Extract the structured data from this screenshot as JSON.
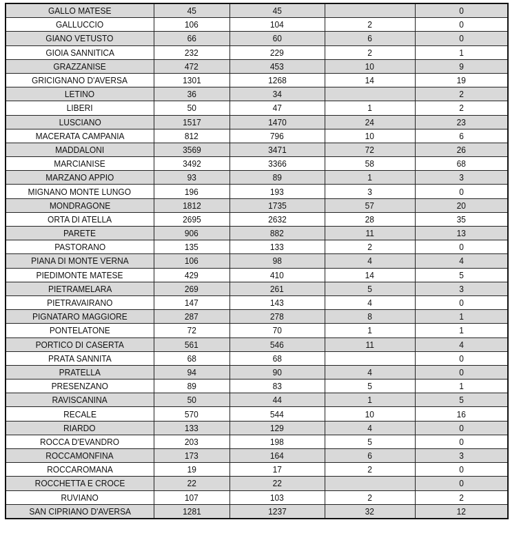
{
  "table": {
    "rows": [
      [
        "GALLO MATESE",
        "45",
        "45",
        "",
        "0"
      ],
      [
        "GALLUCCIO",
        "106",
        "104",
        "2",
        "0"
      ],
      [
        "GIANO VETUSTO",
        "66",
        "60",
        "6",
        "0"
      ],
      [
        "GIOIA SANNITICA",
        "232",
        "229",
        "2",
        "1"
      ],
      [
        "GRAZZANISE",
        "472",
        "453",
        "10",
        "9"
      ],
      [
        "GRICIGNANO D'AVERSA",
        "1301",
        "1268",
        "14",
        "19"
      ],
      [
        "LETINO",
        "36",
        "34",
        "",
        "2"
      ],
      [
        "LIBERI",
        "50",
        "47",
        "1",
        "2"
      ],
      [
        "LUSCIANO",
        "1517",
        "1470",
        "24",
        "23"
      ],
      [
        "MACERATA CAMPANIA",
        "812",
        "796",
        "10",
        "6"
      ],
      [
        "MADDALONI",
        "3569",
        "3471",
        "72",
        "26"
      ],
      [
        "MARCIANISE",
        "3492",
        "3366",
        "58",
        "68"
      ],
      [
        "MARZANO APPIO",
        "93",
        "89",
        "1",
        "3"
      ],
      [
        "MIGNANO MONTE LUNGO",
        "196",
        "193",
        "3",
        "0"
      ],
      [
        "MONDRAGONE",
        "1812",
        "1735",
        "57",
        "20"
      ],
      [
        "ORTA DI ATELLA",
        "2695",
        "2632",
        "28",
        "35"
      ],
      [
        "PARETE",
        "906",
        "882",
        "11",
        "13"
      ],
      [
        "PASTORANO",
        "135",
        "133",
        "2",
        "0"
      ],
      [
        "PIANA DI MONTE VERNA",
        "106",
        "98",
        "4",
        "4"
      ],
      [
        "PIEDIMONTE MATESE",
        "429",
        "410",
        "14",
        "5"
      ],
      [
        "PIETRAMELARA",
        "269",
        "261",
        "5",
        "3"
      ],
      [
        "PIETRAVAIRANO",
        "147",
        "143",
        "4",
        "0"
      ],
      [
        "PIGNATARO MAGGIORE",
        "287",
        "278",
        "8",
        "1"
      ],
      [
        "PONTELATONE",
        "72",
        "70",
        "1",
        "1"
      ],
      [
        "PORTICO DI CASERTA",
        "561",
        "546",
        "11",
        "4"
      ],
      [
        "PRATA SANNITA",
        "68",
        "68",
        "",
        "0"
      ],
      [
        "PRATELLA",
        "94",
        "90",
        "4",
        "0"
      ],
      [
        "PRESENZANO",
        "89",
        "83",
        "5",
        "1"
      ],
      [
        "RAVISCANINA",
        "50",
        "44",
        "1",
        "5"
      ],
      [
        "RECALE",
        "570",
        "544",
        "10",
        "16"
      ],
      [
        "RIARDO",
        "133",
        "129",
        "4",
        "0"
      ],
      [
        "ROCCA D'EVANDRO",
        "203",
        "198",
        "5",
        "0"
      ],
      [
        "ROCCAMONFINA",
        "173",
        "164",
        "6",
        "3"
      ],
      [
        "ROCCAROMANA",
        "19",
        "17",
        "2",
        "0"
      ],
      [
        "ROCCHETTA E CROCE",
        "22",
        "22",
        "",
        "0"
      ],
      [
        "RUVIANO",
        "107",
        "103",
        "2",
        "2"
      ],
      [
        "SAN CIPRIANO D'AVERSA",
        "1281",
        "1237",
        "32",
        "12"
      ]
    ],
    "colors": {
      "shaded_row": "#d9d9d9",
      "plain_row": "#ffffff",
      "border": "#222222"
    }
  }
}
